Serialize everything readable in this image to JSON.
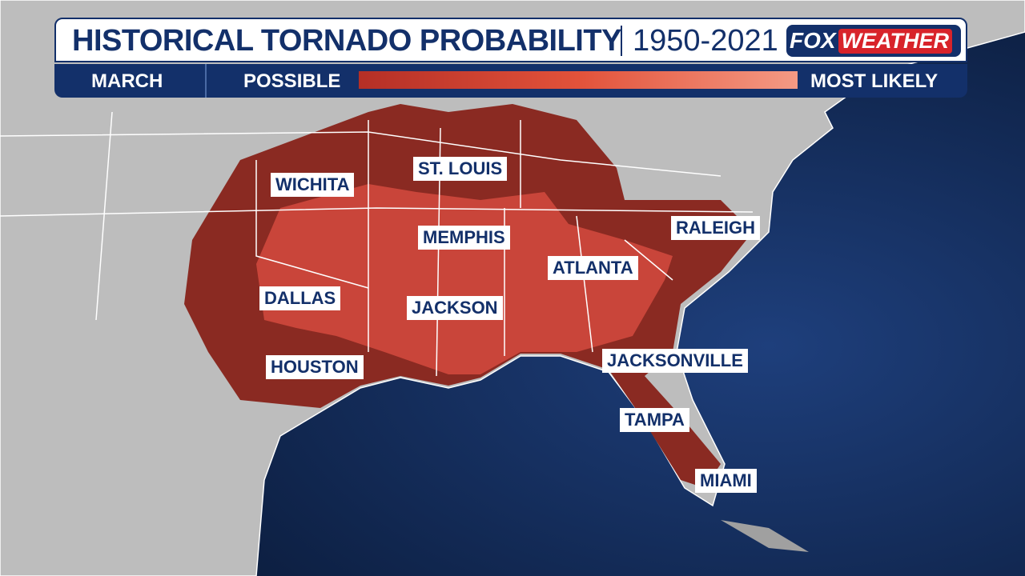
{
  "header": {
    "title": "HISTORICAL TORNADO PROBABILITY",
    "period": "1950-2021",
    "logo": {
      "fox": "FOX",
      "weather": "WEATHER"
    }
  },
  "legend": {
    "month": "MARCH",
    "low": "POSSIBLE",
    "high": "MOST LIKELY"
  },
  "cities": [
    "WICHITA",
    "ST. LOUIS",
    "MEMPHIS",
    "RALEIGH",
    "ATLANTA",
    "DALLAS",
    "JACKSON",
    "HOUSTON",
    "JACKSONVILLE",
    "TAMPA",
    "MIAMI"
  ]
}
